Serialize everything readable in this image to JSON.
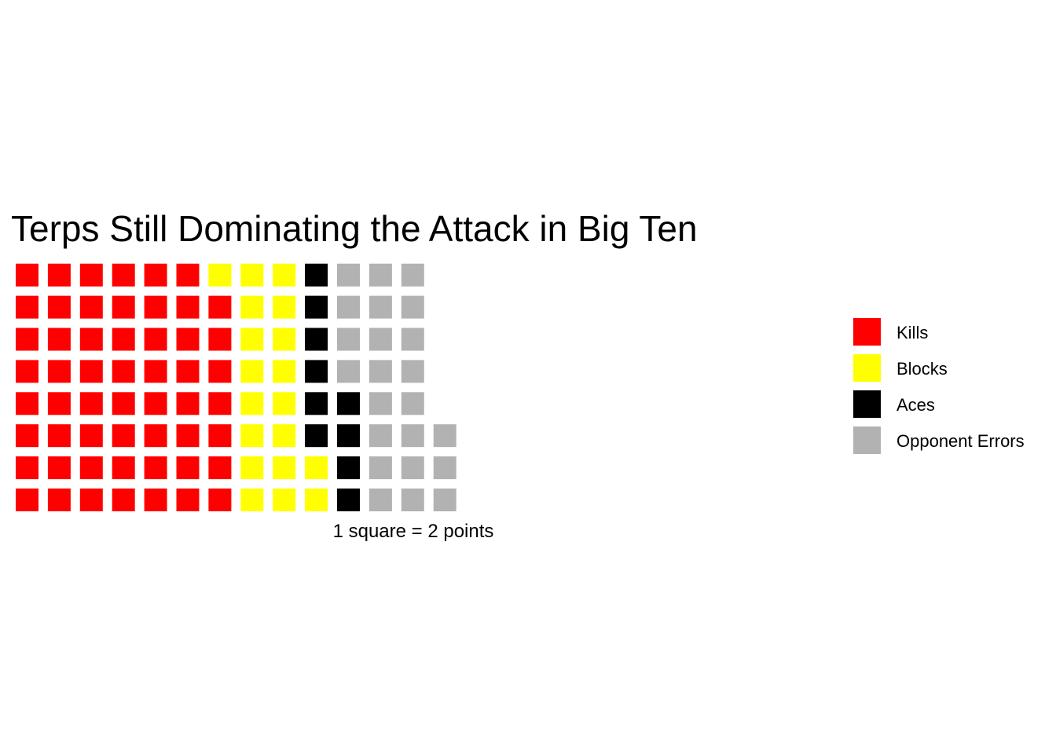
{
  "chart_data": {
    "type": "waffle",
    "title": "Terps Still Dominating the Attack in Big Ten",
    "xlabel": "1 square = 2 points",
    "rows": 8,
    "fill_order": "column-major from bottom-left",
    "series": [
      {
        "name": "Kills",
        "value": 109,
        "color": "#ff0000"
      },
      {
        "name": "Blocks",
        "value": 37,
        "color": "#ffff00"
      },
      {
        "name": "Aces",
        "value": 19,
        "color": "#000000"
      },
      {
        "name": "Opponent Errors",
        "value": 45,
        "color": "#b2b2b2"
      }
    ],
    "legend": {
      "position": "right"
    },
    "grid": false
  }
}
